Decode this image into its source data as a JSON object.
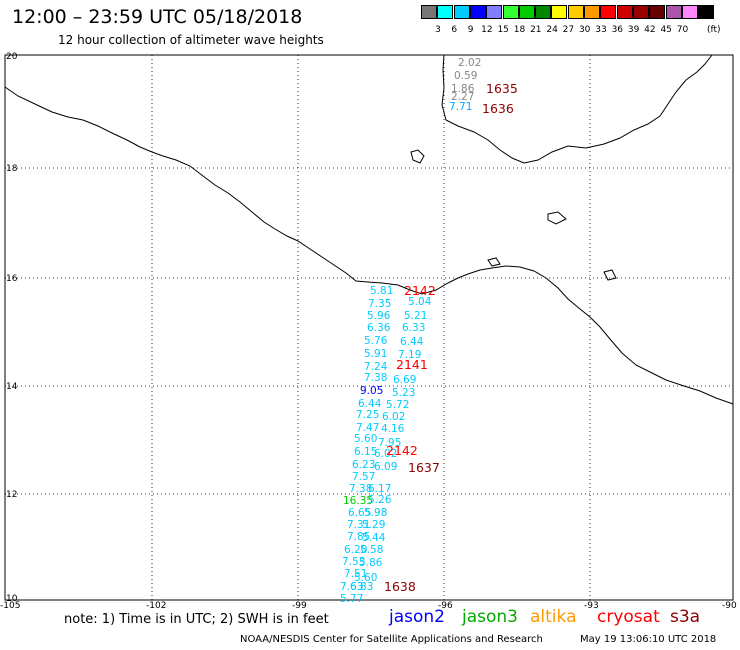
{
  "header": {
    "title": "12:00 – 23:59 UTC 05/18/2018",
    "subtitle": "12 hour collection of altimeter wave heights"
  },
  "scale": {
    "colors": [
      "#777777",
      "#00ffff",
      "#00ccff",
      "#0000ff",
      "#7f7fff",
      "#33ff33",
      "#00cc00",
      "#008800",
      "#ffff00",
      "#ffcc00",
      "#ff9900",
      "#ff0000",
      "#cc0000",
      "#990000",
      "#660000",
      "#aa55aa",
      "#ff88ff",
      "#000000"
    ],
    "labels": [
      "3",
      "6",
      "9",
      "12",
      "15",
      "18",
      "21",
      "24",
      "27",
      "30",
      "33",
      "36",
      "39",
      "42",
      "45",
      "70"
    ],
    "unit": "(ft)"
  },
  "axes": {
    "lon_ticks": [
      "-105",
      "-102",
      "-99",
      "-96",
      "-93",
      "-90"
    ],
    "lat_ticks": [
      "20",
      "18",
      "16",
      "14",
      "12",
      "10"
    ]
  },
  "passes": [
    {
      "label": "1635",
      "color": "#8b0000"
    },
    {
      "label": "1636",
      "color": "#8b0000"
    },
    {
      "label": "2142",
      "color": "#ff0000"
    },
    {
      "label": "2141",
      "color": "#ff0000"
    },
    {
      "label": "2142",
      "color": "#ff0000"
    },
    {
      "label": "1637",
      "color": "#8b0000"
    },
    {
      "label": "1638",
      "color": "#8b0000"
    }
  ],
  "wave_values": [
    {
      "v": "2.02",
      "c": "#888888"
    },
    {
      "v": "0.59",
      "c": "#888888"
    },
    {
      "v": "1.86",
      "c": "#888888"
    },
    {
      "v": "2.27",
      "c": "#888888"
    },
    {
      "v": "7.71",
      "c": "#00aaff"
    },
    {
      "v": "5.81",
      "c": "#00ccff"
    },
    {
      "v": "5.04",
      "c": "#00ccff"
    },
    {
      "v": "7.35",
      "c": "#00ccff"
    },
    {
      "v": "5.96",
      "c": "#00ccff"
    },
    {
      "v": "5.21",
      "c": "#00ccff"
    },
    {
      "v": "6.36",
      "c": "#00ccff"
    },
    {
      "v": "6.33",
      "c": "#00ccff"
    },
    {
      "v": "5.76",
      "c": "#00ccff"
    },
    {
      "v": "6.44",
      "c": "#00ccff"
    },
    {
      "v": "5.91",
      "c": "#00ccff"
    },
    {
      "v": "7.19",
      "c": "#00ccff"
    },
    {
      "v": "7.24",
      "c": "#00ccff"
    },
    {
      "v": "7.38",
      "c": "#00ccff"
    },
    {
      "v": "6.69",
      "c": "#00ccff"
    },
    {
      "v": "9.05",
      "c": "#0000ff"
    },
    {
      "v": "5.23",
      "c": "#00ccff"
    },
    {
      "v": "6.44",
      "c": "#00ccff"
    },
    {
      "v": "5.72",
      "c": "#00ccff"
    },
    {
      "v": "7.25",
      "c": "#00ccff"
    },
    {
      "v": "6.02",
      "c": "#00ccff"
    },
    {
      "v": "7.47",
      "c": "#00ccff"
    },
    {
      "v": "4.16",
      "c": "#00ccff"
    },
    {
      "v": "5.60",
      "c": "#00ccff"
    },
    {
      "v": "7.95",
      "c": "#00ccff"
    },
    {
      "v": "6.15",
      "c": "#00ccff"
    },
    {
      "v": "6.02",
      "c": "#00ccff"
    },
    {
      "v": "6.23",
      "c": "#00ccff"
    },
    {
      "v": "6.09",
      "c": "#00ccff"
    },
    {
      "v": "7.57",
      "c": "#00ccff"
    },
    {
      "v": "7.38",
      "c": "#00ccff"
    },
    {
      "v": "6.17",
      "c": "#00ccff"
    },
    {
      "v": "16.35",
      "c": "#00cc00"
    },
    {
      "v": "5.26",
      "c": "#00ccff"
    },
    {
      "v": "6.65",
      "c": "#00ccff"
    },
    {
      "v": "5.98",
      "c": "#00ccff"
    },
    {
      "v": "7.31",
      "c": "#00ccff"
    },
    {
      "v": "5.29",
      "c": "#00ccff"
    },
    {
      "v": "7.85",
      "c": "#00ccff"
    },
    {
      "v": "5.44",
      "c": "#00ccff"
    },
    {
      "v": "6.20",
      "c": "#00ccff"
    },
    {
      "v": "5.58",
      "c": "#00ccff"
    },
    {
      "v": "7.53",
      "c": "#00ccff"
    },
    {
      "v": "5.86",
      "c": "#00ccff"
    },
    {
      "v": "7.51",
      "c": "#00ccff"
    },
    {
      "v": "5.60",
      "c": "#00ccff"
    },
    {
      "v": "7.63",
      "c": "#00ccff"
    },
    {
      "v": "6.83",
      "c": "#00ccff"
    },
    {
      "v": "5.77",
      "c": "#00ccff"
    }
  ],
  "footer": {
    "note": "note: 1) Time is in UTC; 2) SWH is in feet",
    "satellites": [
      {
        "name": "jason2",
        "color": "#0000ff"
      },
      {
        "name": "jason3",
        "color": "#00aa00"
      },
      {
        "name": "altika",
        "color": "#ff9900"
      },
      {
        "name": "cryosat",
        "color": "#ff0000"
      },
      {
        "name": "s3a",
        "color": "#8b0000"
      }
    ],
    "credit": "NOAA/NESDIS Center for Satellite Applications and Research",
    "date": "May 19 13:06:10 UTC 2018"
  }
}
